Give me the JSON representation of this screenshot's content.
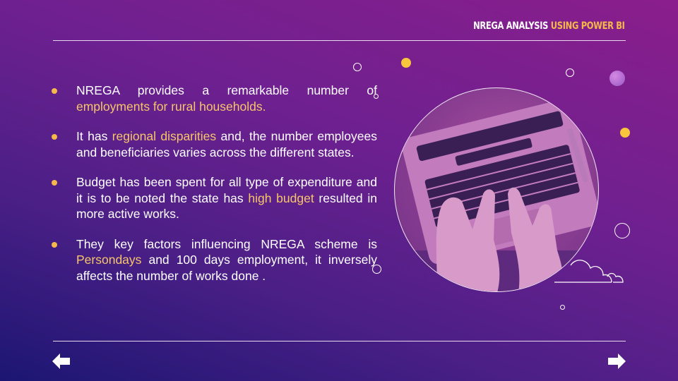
{
  "header": {
    "title_part1": "NREGA ANALYSIS ",
    "title_part2": "USING POWER BI"
  },
  "bullets": [
    {
      "parts": [
        {
          "text": "NREGA provides a remarkable number of ",
          "highlight": false
        },
        {
          "text": "employments for rural households.",
          "highlight": true
        }
      ]
    },
    {
      "parts": [
        {
          "text": "It has ",
          "highlight": false
        },
        {
          "text": "regional disparities",
          "highlight": true
        },
        {
          "text": " and, the number employees and beneficiaries varies across the different states.",
          "highlight": false
        }
      ]
    },
    {
      "parts": [
        {
          "text": "Budget has been spent for all type of expenditure and it is to be noted the state has ",
          "highlight": false
        },
        {
          "text": "high budget",
          "highlight": true
        },
        {
          "text": " resulted in more active works.",
          "highlight": false
        }
      ]
    },
    {
      "parts": [
        {
          "text": "They key factors influencing NREGA scheme is ",
          "highlight": false
        },
        {
          "text": "Persondays",
          "highlight": true
        },
        {
          "text": " and 100 days employment, it inversely affects the number of works done .",
          "highlight": false
        }
      ]
    }
  ],
  "navigation": {
    "prev_icon": "arrow-left-icon",
    "next_icon": "arrow-right-icon"
  },
  "colors": {
    "accent": "#f7b84a",
    "highlight_text": "#f7c56a",
    "background_start": "#1c1672",
    "background_end": "#8a1e8c"
  }
}
